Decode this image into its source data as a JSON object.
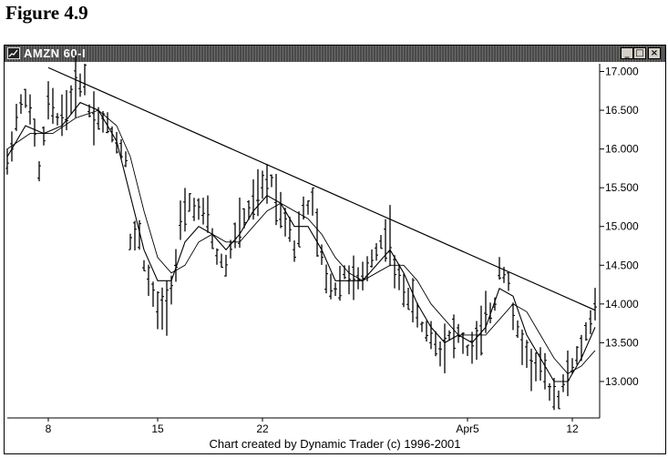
{
  "figure_title": "Figure 4.9",
  "window": {
    "title": "AMZN 60-I",
    "min_glyph": "_",
    "max_glyph": "□",
    "close_glyph": "×",
    "credit": "Chart created by Dynamic Trader (c) 1996-2001"
  },
  "chart_data": {
    "type": "bar",
    "subtype": "ohlc",
    "symbol": "AMZN",
    "interval": "60-I",
    "ylim": [
      12.6,
      17.1
    ],
    "xlim": [
      0,
      130
    ],
    "yticks": [
      {
        "value": 17.0,
        "label": "17.000"
      },
      {
        "value": 16.5,
        "label": "16.500"
      },
      {
        "value": 16.0,
        "label": "16.000"
      },
      {
        "value": 15.5,
        "label": "15.500"
      },
      {
        "value": 15.0,
        "label": "15.000"
      },
      {
        "value": 14.5,
        "label": "14.500"
      },
      {
        "value": 14.0,
        "label": "14.000"
      },
      {
        "value": 13.5,
        "label": "13.500"
      },
      {
        "value": 13.0,
        "label": "13.000"
      }
    ],
    "xticks": [
      {
        "x": 9,
        "label": "8"
      },
      {
        "x": 33,
        "label": "15"
      },
      {
        "x": 56,
        "label": "22"
      },
      {
        "x": 101,
        "label": "Apr5"
      },
      {
        "x": 124,
        "label": "12"
      }
    ],
    "price_path": [
      [
        0,
        15.8
      ],
      [
        2,
        16.4
      ],
      [
        4,
        16.7
      ],
      [
        6,
        16.2
      ],
      [
        7,
        15.7
      ],
      [
        9,
        16.6
      ],
      [
        11,
        16.4
      ],
      [
        13,
        16.5
      ],
      [
        15,
        16.8
      ],
      [
        17,
        16.9
      ],
      [
        18,
        16.5
      ],
      [
        20,
        16.4
      ],
      [
        22,
        16.3
      ],
      [
        24,
        16.1
      ],
      [
        26,
        15.9
      ],
      [
        27,
        14.8
      ],
      [
        29,
        14.9
      ],
      [
        30,
        14.5
      ],
      [
        32,
        14.1
      ],
      [
        33,
        13.9
      ],
      [
        35,
        14.0
      ],
      [
        37,
        14.5
      ],
      [
        38,
        15.0
      ],
      [
        40,
        15.3
      ],
      [
        42,
        15.2
      ],
      [
        44,
        15.1
      ],
      [
        46,
        14.6
      ],
      [
        48,
        14.5
      ],
      [
        50,
        14.9
      ],
      [
        52,
        15.1
      ],
      [
        54,
        15.3
      ],
      [
        56,
        15.5
      ],
      [
        58,
        15.6
      ],
      [
        60,
        15.2
      ],
      [
        62,
        15.0
      ],
      [
        63,
        14.7
      ],
      [
        65,
        15.2
      ],
      [
        67,
        15.3
      ],
      [
        68,
        14.9
      ],
      [
        70,
        14.3
      ],
      [
        72,
        14.2
      ],
      [
        74,
        14.4
      ],
      [
        76,
        14.3
      ],
      [
        78,
        14.3
      ],
      [
        80,
        14.6
      ],
      [
        82,
        14.8
      ],
      [
        84,
        14.9
      ],
      [
        85,
        14.4
      ],
      [
        87,
        14.2
      ],
      [
        89,
        14.0
      ],
      [
        91,
        13.7
      ],
      [
        93,
        13.6
      ],
      [
        95,
        13.4
      ],
      [
        97,
        13.6
      ],
      [
        99,
        13.6
      ],
      [
        101,
        13.4
      ],
      [
        103,
        13.5
      ],
      [
        105,
        13.8
      ],
      [
        107,
        14.0
      ],
      [
        108,
        14.5
      ],
      [
        110,
        14.3
      ],
      [
        111,
        13.8
      ],
      [
        113,
        13.5
      ],
      [
        115,
        13.2
      ],
      [
        117,
        13.2
      ],
      [
        119,
        12.9
      ],
      [
        121,
        12.8
      ],
      [
        123,
        13.1
      ],
      [
        125,
        13.3
      ],
      [
        127,
        13.6
      ],
      [
        129,
        14.0
      ]
    ],
    "moving_averages": [
      {
        "period": "short",
        "points": [
          [
            0,
            15.9
          ],
          [
            4,
            16.3
          ],
          [
            8,
            16.2
          ],
          [
            12,
            16.3
          ],
          [
            16,
            16.6
          ],
          [
            20,
            16.5
          ],
          [
            24,
            16.1
          ],
          [
            27,
            15.4
          ],
          [
            30,
            14.7
          ],
          [
            33,
            14.3
          ],
          [
            36,
            14.3
          ],
          [
            39,
            14.8
          ],
          [
            42,
            15.0
          ],
          [
            45,
            14.9
          ],
          [
            48,
            14.7
          ],
          [
            51,
            14.9
          ],
          [
            54,
            15.2
          ],
          [
            57,
            15.4
          ],
          [
            60,
            15.3
          ],
          [
            63,
            15.0
          ],
          [
            66,
            15.0
          ],
          [
            69,
            14.7
          ],
          [
            72,
            14.3
          ],
          [
            75,
            14.3
          ],
          [
            78,
            14.3
          ],
          [
            81,
            14.5
          ],
          [
            84,
            14.7
          ],
          [
            87,
            14.4
          ],
          [
            90,
            14.0
          ],
          [
            93,
            13.7
          ],
          [
            96,
            13.5
          ],
          [
            99,
            13.6
          ],
          [
            102,
            13.5
          ],
          [
            105,
            13.7
          ],
          [
            108,
            14.2
          ],
          [
            111,
            14.1
          ],
          [
            114,
            13.6
          ],
          [
            117,
            13.3
          ],
          [
            120,
            13.0
          ],
          [
            123,
            13.0
          ],
          [
            126,
            13.3
          ],
          [
            129,
            13.7
          ]
        ]
      },
      {
        "period": "long",
        "points": [
          [
            0,
            16.0
          ],
          [
            5,
            16.2
          ],
          [
            10,
            16.2
          ],
          [
            15,
            16.4
          ],
          [
            20,
            16.5
          ],
          [
            24,
            16.3
          ],
          [
            27,
            15.9
          ],
          [
            30,
            15.2
          ],
          [
            33,
            14.6
          ],
          [
            36,
            14.4
          ],
          [
            39,
            14.5
          ],
          [
            42,
            14.8
          ],
          [
            45,
            14.9
          ],
          [
            48,
            14.8
          ],
          [
            51,
            14.8
          ],
          [
            54,
            15.0
          ],
          [
            57,
            15.2
          ],
          [
            60,
            15.3
          ],
          [
            63,
            15.2
          ],
          [
            66,
            15.1
          ],
          [
            69,
            14.9
          ],
          [
            72,
            14.6
          ],
          [
            75,
            14.4
          ],
          [
            78,
            14.3
          ],
          [
            81,
            14.4
          ],
          [
            84,
            14.5
          ],
          [
            87,
            14.5
          ],
          [
            90,
            14.3
          ],
          [
            93,
            14.0
          ],
          [
            96,
            13.8
          ],
          [
            99,
            13.6
          ],
          [
            102,
            13.6
          ],
          [
            105,
            13.6
          ],
          [
            108,
            13.8
          ],
          [
            111,
            14.0
          ],
          [
            114,
            13.9
          ],
          [
            117,
            13.6
          ],
          [
            120,
            13.3
          ],
          [
            123,
            13.1
          ],
          [
            126,
            13.2
          ],
          [
            129,
            13.4
          ]
        ]
      }
    ],
    "trendline": [
      [
        9,
        17.05
      ],
      [
        129,
        13.92
      ]
    ],
    "grid": false
  }
}
